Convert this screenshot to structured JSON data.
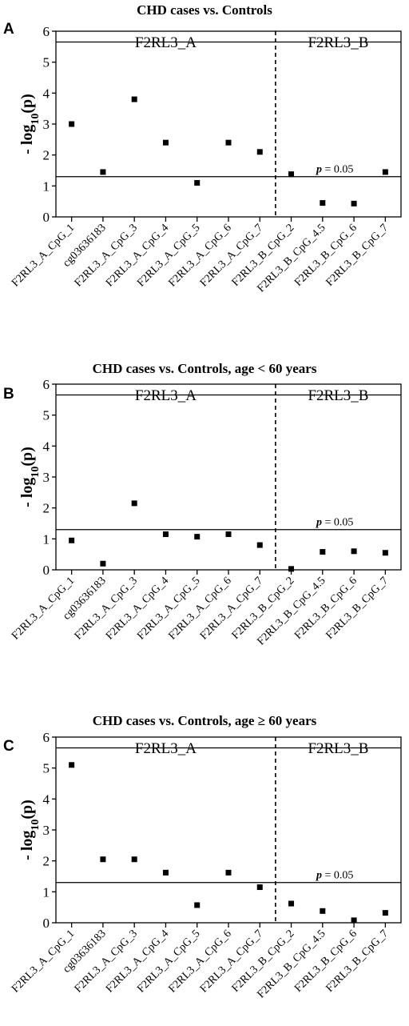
{
  "figure": {
    "y_label_prefix": "- log",
    "y_label_sub": "10",
    "y_label_suffix": "(p)",
    "sig_label_p": "p",
    "sig_label_rest": " = 0.05",
    "colors": {
      "axis": "#000000",
      "marker": "#000000",
      "background": "#ffffff"
    },
    "marker": "square"
  },
  "chart_data": [
    {
      "type": "scatter",
      "panel_label": "A",
      "title": "CHD cases vs. Controls",
      "categories": [
        "F2RL3_A_CpG_1",
        "cg03636183",
        "F2RL3_A_CpG_3",
        "F2RL3_A_CpG_4",
        "F2RL3_A_CpG_5",
        "F2RL3_A_CpG_6",
        "F2RL3_A_CpG_7",
        "F2RL3_B_CpG_2",
        "F2RL3_B_CpG_4.5",
        "F2RL3_B_CpG_6",
        "F2RL3_B_CpG_7"
      ],
      "values": [
        3.0,
        1.45,
        3.8,
        2.4,
        1.1,
        2.4,
        2.1,
        1.38,
        0.45,
        0.43,
        1.45
      ],
      "ylim": [
        0,
        6
      ],
      "yticks": [
        0,
        1,
        2,
        3,
        4,
        5,
        6
      ],
      "threshold": 1.3,
      "top_line": 5.65,
      "region_labels": [
        "F2RL3_A",
        "F2RL3_B"
      ],
      "divider_after_index": 6.5,
      "grid": false
    },
    {
      "type": "scatter",
      "panel_label": "B",
      "title": "CHD cases vs. Controls, age < 60 years",
      "categories": [
        "F2RL3_A_CpG_1",
        "cg03636183",
        "F2RL3_A_CpG_3",
        "F2RL3_A_CpG_4",
        "F2RL3_A_CpG_5",
        "F2RL3_A_CpG_6",
        "F2RL3_A_CpG_7",
        "F2RL3_B_CpG_2",
        "F2RL3_B_CpG_4.5",
        "F2RL3_B_CpG_6",
        "F2RL3_B_CpG_7"
      ],
      "values": [
        0.95,
        0.2,
        2.15,
        1.15,
        1.07,
        1.15,
        0.8,
        0.03,
        0.58,
        0.6,
        0.55
      ],
      "ylim": [
        0,
        6
      ],
      "yticks": [
        0,
        1,
        2,
        3,
        4,
        5,
        6
      ],
      "threshold": 1.3,
      "top_line": 5.65,
      "region_labels": [
        "F2RL3_A",
        "F2RL3_B"
      ],
      "divider_after_index": 6.5,
      "grid": false
    },
    {
      "type": "scatter",
      "panel_label": "C",
      "title": "CHD cases vs. Controls, age ≥ 60 years",
      "categories": [
        "F2RL3_A_CpG_1",
        "cg03636183",
        "F2RL3_A_CpG_3",
        "F2RL3_A_CpG_4",
        "F2RL3_A_CpG_5",
        "F2RL3_A_CpG_6",
        "F2RL3_A_CpG_7",
        "F2RL3_B_CpG_2",
        "F2RL3_B_CpG_4.5",
        "F2RL3_B_CpG_6",
        "F2RL3_B_CpG_7"
      ],
      "values": [
        5.1,
        2.05,
        2.05,
        1.62,
        0.57,
        1.62,
        1.15,
        0.62,
        0.38,
        0.08,
        0.32
      ],
      "ylim": [
        0,
        6
      ],
      "yticks": [
        0,
        1,
        2,
        3,
        4,
        5,
        6
      ],
      "threshold": 1.3,
      "top_line": 5.65,
      "region_labels": [
        "F2RL3_A",
        "F2RL3_B"
      ],
      "divider_after_index": 6.5,
      "grid": false
    }
  ]
}
